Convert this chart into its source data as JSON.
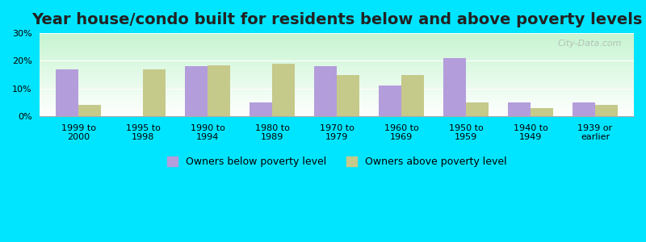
{
  "title": "Year house/condo built for residents below and above poverty levels",
  "categories": [
    "1999 to\n2000",
    "1995 to\n1998",
    "1990 to\n1994",
    "1980 to\n1989",
    "1970 to\n1979",
    "1960 to\n1969",
    "1950 to\n1959",
    "1940 to\n1949",
    "1939 or\nearlier"
  ],
  "below_poverty": [
    17.0,
    0.0,
    18.0,
    5.0,
    18.0,
    11.0,
    21.0,
    5.0,
    5.0
  ],
  "above_poverty": [
    4.0,
    17.0,
    18.5,
    19.0,
    15.0,
    15.0,
    5.0,
    3.0,
    4.0
  ],
  "below_color": "#b39ddb",
  "above_color": "#c5c98a",
  "ylim": [
    0,
    30
  ],
  "yticks": [
    0,
    10,
    20,
    30
  ],
  "bg_outer": "#00e5ff",
  "bg_plot_top": "#ffffff",
  "bg_plot_bottom": "#c8f5d0",
  "legend_below": "Owners below poverty level",
  "legend_above": "Owners above poverty level",
  "title_fontsize": 14,
  "tick_fontsize": 8,
  "legend_fontsize": 9
}
